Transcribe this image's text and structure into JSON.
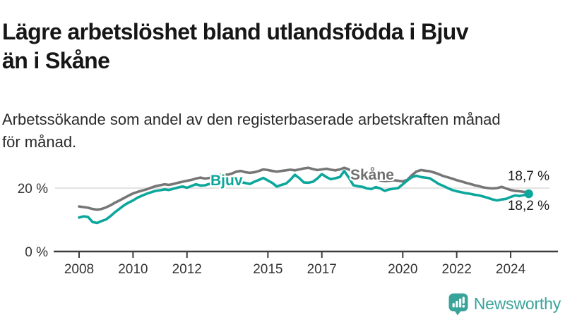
{
  "header": {
    "title_lines": [
      "Lägre arbetslöshet bland utlandsfödda i Bjuv",
      "än i Skåne"
    ],
    "subtitle_lines": [
      "Arbetssökande som andel av den registerbaserade arbetskraften månad",
      "för månad."
    ]
  },
  "footer": {
    "brand": "Newsworthy"
  },
  "colors": {
    "bjuv": "#0ca79c",
    "skane": "#767676",
    "axis": "#3d3d3d",
    "grid": "#d9d9d9",
    "tick_label": "#333333",
    "value_label": "#1c1c1c",
    "brand": "#38a499",
    "title": "#161616",
    "subtitle": "#2a2a2a"
  },
  "chart_data": {
    "type": "line",
    "title": "Lägre arbetslöshet bland utlandsfödda i Bjuv än i Skåne",
    "subtitle": "Arbetssökande som andel av den registerbaserade arbetskraften månad för månad.",
    "unit": "%",
    "xlim": [
      2007.8,
      2025.3
    ],
    "ylim": [
      0,
      30
    ],
    "grid": "horizontal-20-only",
    "legend_position": "inline-on-lines",
    "x": [
      2008,
      2008.17,
      2008.33,
      2008.5,
      2008.67,
      2008.83,
      2009,
      2009.17,
      2009.33,
      2009.5,
      2009.67,
      2009.83,
      2010,
      2010.17,
      2010.33,
      2010.5,
      2010.67,
      2010.83,
      2011,
      2011.17,
      2011.33,
      2011.5,
      2011.67,
      2011.83,
      2012,
      2012.17,
      2012.33,
      2012.5,
      2012.67,
      2012.83,
      2013,
      2013.17,
      2013.33,
      2013.5,
      2013.67,
      2013.83,
      2014,
      2014.17,
      2014.33,
      2014.5,
      2014.67,
      2014.83,
      2015,
      2015.17,
      2015.33,
      2015.5,
      2015.67,
      2015.83,
      2016,
      2016.17,
      2016.33,
      2016.5,
      2016.67,
      2016.83,
      2017,
      2017.17,
      2017.33,
      2017.5,
      2017.67,
      2017.83,
      2018,
      2018.17,
      2018.33,
      2018.5,
      2018.67,
      2018.83,
      2019,
      2019.17,
      2019.33,
      2019.5,
      2019.67,
      2019.83,
      2020,
      2020.17,
      2020.33,
      2020.5,
      2020.67,
      2020.83,
      2021,
      2021.17,
      2021.33,
      2021.5,
      2021.67,
      2021.83,
      2022,
      2022.17,
      2022.33,
      2022.5,
      2022.67,
      2022.83,
      2023,
      2023.17,
      2023.33,
      2023.5,
      2023.67,
      2023.83,
      2024,
      2024.17,
      2024.33,
      2024.5,
      2024.67
    ],
    "series": [
      {
        "name": "Skåne",
        "color": "#767676",
        "end_label": "18,7 %",
        "end_value": 18.7,
        "values": [
          14.2,
          14.0,
          13.8,
          13.4,
          13.2,
          13.4,
          13.9,
          14.6,
          15.4,
          16.1,
          16.9,
          17.6,
          18.3,
          18.8,
          19.2,
          19.6,
          20.1,
          20.6,
          20.9,
          21.2,
          21.0,
          21.3,
          21.7,
          22.0,
          22.3,
          22.6,
          23.0,
          23.3,
          23.0,
          23.2,
          23.6,
          24.0,
          24.4,
          24.2,
          24.6,
          25.2,
          25.4,
          25.0,
          24.8,
          25.0,
          25.4,
          25.9,
          25.7,
          25.4,
          25.2,
          25.4,
          25.6,
          25.8,
          25.6,
          25.9,
          26.2,
          26.4,
          26.0,
          25.7,
          25.9,
          26.1,
          25.8,
          25.6,
          25.9,
          26.4,
          25.9,
          24.8,
          24.1,
          23.6,
          23.3,
          23.0,
          22.8,
          22.4,
          22.2,
          22.3,
          22.5,
          22.3,
          22.1,
          22.6,
          24.0,
          25.2,
          25.7,
          25.5,
          25.3,
          24.9,
          24.4,
          23.8,
          23.4,
          23.0,
          22.5,
          22.1,
          21.7,
          21.3,
          20.9,
          20.6,
          20.2,
          20.0,
          19.9,
          20.0,
          20.4,
          19.9,
          19.4,
          19.1,
          19.0,
          18.8,
          18.7
        ]
      },
      {
        "name": "Bjuv",
        "color": "#0ca79c",
        "end_label": "18,2 %",
        "end_value": 18.2,
        "end_marker": true,
        "values": [
          10.7,
          11.1,
          10.9,
          9.3,
          9.0,
          9.6,
          10.1,
          11.2,
          12.4,
          13.5,
          14.6,
          15.4,
          16.1,
          17.0,
          17.6,
          18.2,
          18.7,
          19.1,
          19.3,
          19.6,
          19.4,
          19.8,
          20.2,
          20.5,
          20.1,
          20.7,
          21.2,
          20.8,
          20.9,
          21.3,
          21.6,
          21.4,
          21.7,
          21.5,
          21.8,
          21.6,
          21.9,
          21.6,
          21.3,
          22.0,
          22.6,
          23.2,
          22.4,
          21.6,
          20.5,
          21.0,
          21.4,
          22.6,
          24.2,
          23.1,
          21.8,
          21.7,
          22.0,
          23.0,
          24.4,
          23.5,
          22.8,
          23.1,
          23.5,
          25.4,
          23.3,
          20.9,
          20.6,
          20.4,
          19.9,
          19.7,
          20.3,
          19.9,
          19.1,
          19.6,
          19.8,
          20.0,
          21.2,
          22.4,
          23.4,
          23.9,
          23.5,
          23.3,
          23.1,
          22.2,
          21.3,
          20.7,
          20.0,
          19.4,
          19.0,
          18.7,
          18.4,
          18.2,
          17.9,
          17.7,
          17.3,
          16.9,
          16.4,
          16.1,
          16.4,
          16.6,
          17.2,
          17.7,
          17.5,
          17.8,
          18.2
        ]
      }
    ],
    "xticks": [
      {
        "year": 2008,
        "label": "2008"
      },
      {
        "year": 2010,
        "label": "2010"
      },
      {
        "year": 2012,
        "label": "2012"
      },
      {
        "year": 2015,
        "label": "2015"
      },
      {
        "year": 2017,
        "label": "2017"
      },
      {
        "year": 2020,
        "label": "2020"
      },
      {
        "year": 2022,
        "label": "2022"
      },
      {
        "year": 2024,
        "label": "2024"
      }
    ],
    "yticks": [
      {
        "value": 20,
        "label": "20 %"
      },
      {
        "value": 0,
        "label": "0 %"
      }
    ]
  }
}
